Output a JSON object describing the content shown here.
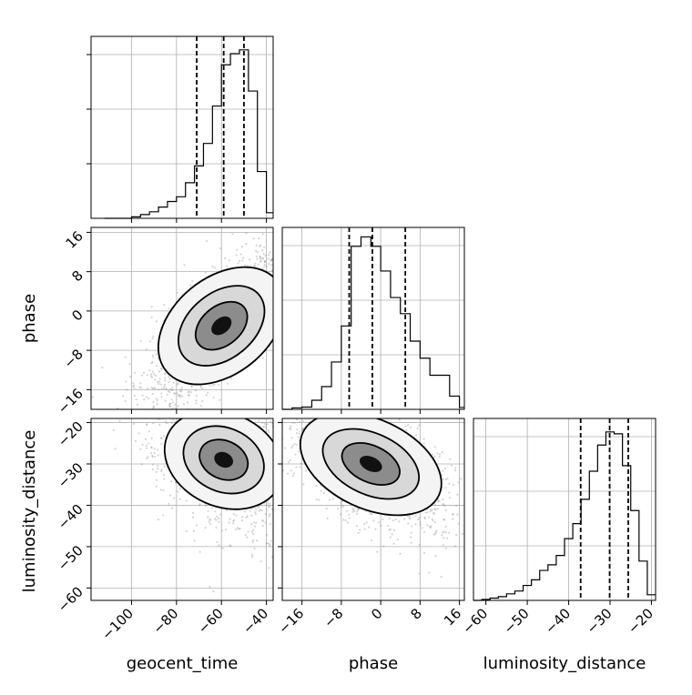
{
  "chart_data": {
    "type": "corner",
    "parameters": [
      "geocent_time",
      "phase",
      "luminosity_distance"
    ],
    "axis_labels": {
      "x": [
        "geocent_time",
        "phase",
        "luminosity_distance"
      ],
      "y": [
        "phase",
        "luminosity_distance"
      ]
    },
    "ranges": {
      "geocent_time": [
        -118,
        -37
      ],
      "phase": [
        -20,
        17
      ],
      "luminosity_distance": [
        -63,
        -19
      ]
    },
    "ticks": {
      "geocent_time": [
        -100,
        -80,
        -60,
        -40
      ],
      "phase": [
        -16,
        -8,
        0,
        8,
        16
      ],
      "luminosity_distance": [
        -60,
        -50,
        -40,
        -30,
        -20
      ]
    },
    "tick_labels": {
      "geocent_time": [
        "−100",
        "−80",
        "−60",
        "−40"
      ],
      "phase": [
        "−16",
        "−8",
        "0",
        "8",
        "16"
      ],
      "luminosity_distance": [
        "−60",
        "−50",
        "−40",
        "−30",
        "−20"
      ]
    },
    "quantiles": {
      "geocent_time": [
        -71,
        -59,
        -50
      ],
      "phase": [
        -6.4,
        -1.7,
        5
      ],
      "luminosity_distance": [
        -37.1,
        -30.1,
        -25.6
      ]
    },
    "histograms": {
      "geocent_time": {
        "edges": [
          -112,
          -108,
          -104,
          -100,
          -96,
          -92,
          -88,
          -84,
          -80,
          -76,
          -72,
          -68,
          -64,
          -60,
          -56,
          -52,
          -48,
          -44,
          -40,
          -37
        ],
        "counts": [
          0,
          0,
          0,
          8,
          20,
          35,
          60,
          90,
          115,
          190,
          280,
          400,
          600,
          820,
          880,
          900,
          680,
          250,
          30
        ]
      },
      "phase": {
        "edges": [
          -20,
          -18,
          -16,
          -14,
          -12,
          -10,
          -8,
          -6,
          -4,
          -2,
          0,
          2,
          4,
          6,
          8,
          10,
          12,
          14,
          16,
          17
        ],
        "counts": [
          0,
          8,
          12,
          48,
          120,
          250,
          440,
          860,
          910,
          860,
          730,
          590,
          505,
          360,
          270,
          180,
          180,
          70,
          10
        ],
        "max": 960
      },
      "luminosity_distance": {
        "edges": [
          -63,
          -61,
          -59,
          -57,
          -55,
          -53,
          -51,
          -49,
          -47,
          -45,
          -43,
          -41,
          -39,
          -37,
          -35,
          -33,
          -31,
          -29,
          -27,
          -25,
          -23,
          -21,
          -19
        ],
        "counts": [
          0,
          5,
          12,
          20,
          35,
          50,
          80,
          110,
          160,
          190,
          240,
          330,
          410,
          540,
          690,
          830,
          900,
          890,
          720,
          480,
          210,
          30
        ]
      }
    },
    "grid": true,
    "scatter_color": "#888888",
    "contour_color": "#000000",
    "quantile_line_color": "#000000"
  }
}
